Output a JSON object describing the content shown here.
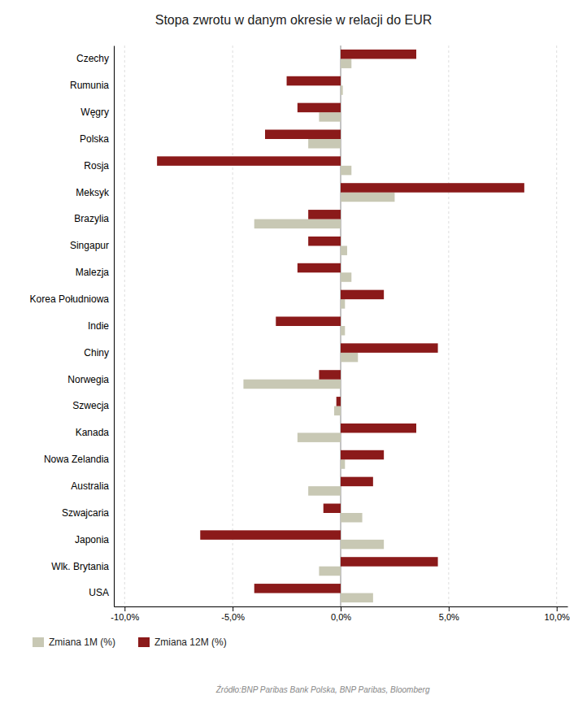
{
  "chart_data": {
    "type": "bar",
    "orientation": "horizontal",
    "title": "Stopa zwrotu w danym okresie w relacji do EUR",
    "source": "Źródło:BNP Paribas Bank Polska, BNP Paribas, Bloomberg",
    "categories": [
      "USA",
      "Wlk. Brytania",
      "Japonia",
      "Szwajcaria",
      "Australia",
      "Nowa Zelandia",
      "Kanada",
      "Szwecja",
      "Norwegia",
      "Chiny",
      "Indie",
      "Korea Południowa",
      "Malezja",
      "Singapur",
      "Brazylia",
      "Meksyk",
      "Rosja",
      "Polska",
      "Węgry",
      "Rumunia",
      "Czechy"
    ],
    "series": [
      {
        "name": "Zmiana 1M (%)",
        "color": "#c8c8b4",
        "values": [
          1.5,
          -1.0,
          2.0,
          1.0,
          -1.5,
          0.2,
          -2.0,
          -0.3,
          -4.5,
          0.8,
          0.2,
          0.2,
          0.5,
          0.3,
          -4.0,
          2.5,
          0.5,
          -1.5,
          -1.0,
          0.1,
          0.5
        ]
      },
      {
        "name": "Zmiana 12M (%)",
        "color": "#8b1a1a",
        "values": [
          -4.0,
          4.5,
          -6.5,
          -0.8,
          1.5,
          2.0,
          3.5,
          -0.2,
          -1.0,
          4.5,
          -3.0,
          2.0,
          -2.0,
          -1.5,
          -1.5,
          8.5,
          -8.5,
          -3.5,
          -2.0,
          -2.5,
          3.5
        ]
      }
    ],
    "xlim": [
      -10.5,
      10.5
    ],
    "xticks": [
      {
        "value": -10.0,
        "label": "-10,0%"
      },
      {
        "value": -5.0,
        "label": "-5,0%"
      },
      {
        "value": 0.0,
        "label": "0,0%"
      },
      {
        "value": 5.0,
        "label": "5,0%"
      },
      {
        "value": 10.0,
        "label": "10,0%"
      }
    ],
    "grid": true,
    "legend": "lower left"
  }
}
